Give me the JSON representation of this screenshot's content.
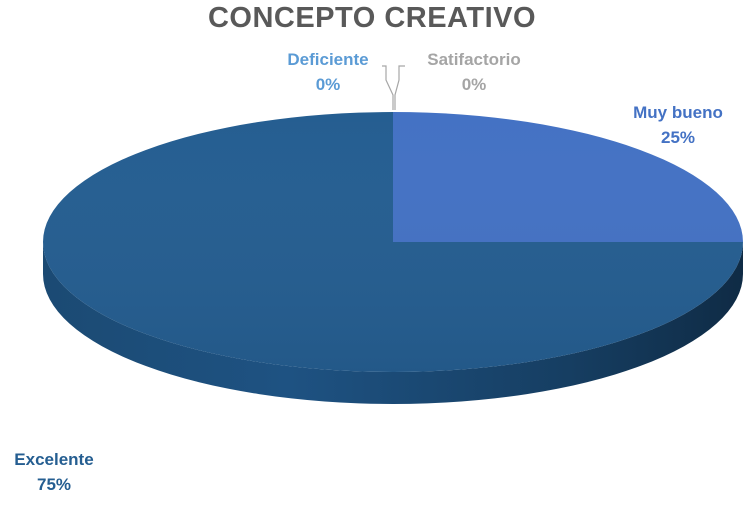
{
  "chart_data": {
    "type": "pie",
    "title": "CONCEPTO  CREATIVO",
    "slices": [
      {
        "label": "Deficiente",
        "value": 0,
        "percent_label": "0%",
        "color": "#5b9bd5"
      },
      {
        "label": "Satifactorio",
        "value": 0,
        "percent_label": "0%",
        "color": "#a5a5a5"
      },
      {
        "label": "Muy bueno",
        "value": 25,
        "percent_label": "25%",
        "color": "#4472c4"
      },
      {
        "label": "Excelente",
        "value": 75,
        "percent_label": "75%",
        "color": "#255e91"
      }
    ],
    "label_colors": {
      "Deficiente": "#5b9bd5",
      "Satifactorio": "#a5a5a5",
      "Muy bueno": "#4472c4",
      "Excelente": "#255e91"
    },
    "style": "3d-pie",
    "legend": "none"
  }
}
